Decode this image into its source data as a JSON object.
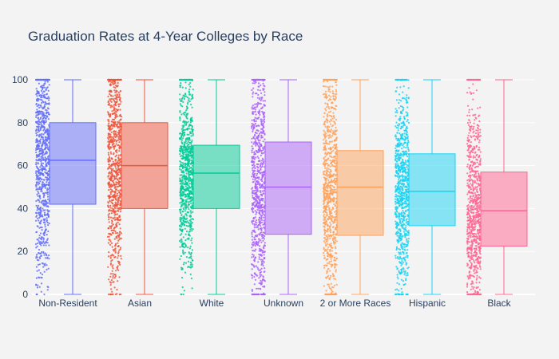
{
  "chart_data": {
    "type": "box",
    "title": "Graduation Rates at 4-Year Colleges by Race",
    "xlabel": "",
    "ylabel": "",
    "ylim": [
      0,
      100
    ],
    "yticks": [
      0,
      20,
      40,
      60,
      80,
      100
    ],
    "grid": true,
    "legend": "none",
    "points": "all (jittered, left of box)",
    "series": [
      {
        "category": "Non-Resident",
        "color": "#636efa",
        "min": 0,
        "q1": 42,
        "median": 62.5,
        "q3": 80,
        "max": 100
      },
      {
        "category": "Asian",
        "color": "#ef553b",
        "min": 0,
        "q1": 40,
        "median": 60,
        "q3": 80,
        "max": 100
      },
      {
        "category": "White",
        "color": "#00cc96",
        "min": 0,
        "q1": 40,
        "median": 56.5,
        "q3": 69.5,
        "max": 100
      },
      {
        "category": "Unknown",
        "color": "#ab63fa",
        "min": 0,
        "q1": 28,
        "median": 50,
        "q3": 71,
        "max": 100
      },
      {
        "category": "2 or More Races",
        "color": "#ffa15a",
        "min": 0,
        "q1": 27.5,
        "median": 50,
        "q3": 67,
        "max": 100
      },
      {
        "category": "Hispanic",
        "color": "#19d3f3",
        "min": 0,
        "q1": 32,
        "median": 48,
        "q3": 65.5,
        "max": 100
      },
      {
        "category": "Black",
        "color": "#ff6692",
        "min": 0,
        "q1": 22.5,
        "median": 39,
        "q3": 57,
        "max": 100
      }
    ]
  }
}
